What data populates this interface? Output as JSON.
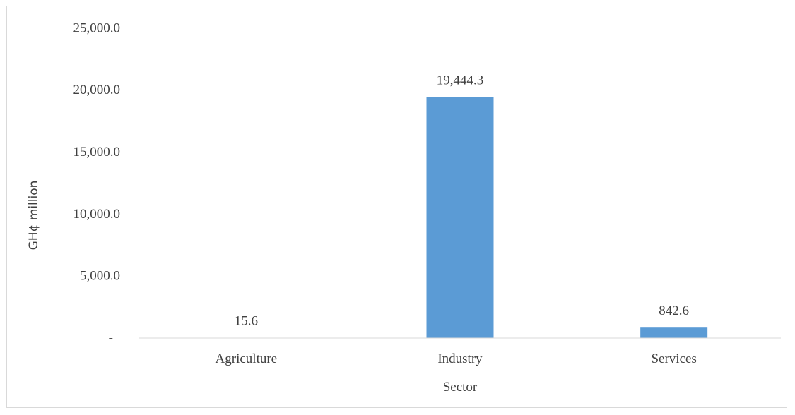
{
  "chart_data": {
    "type": "bar",
    "categories": [
      "Agriculture",
      "Industry",
      "Services"
    ],
    "values": [
      15.6,
      19444.3,
      842.6
    ],
    "data_labels": [
      "15.6",
      "19,444.3",
      "842.6"
    ],
    "title": "",
    "xlabel": "Sector",
    "ylabel": "GH¢ million",
    "ylim": [
      0,
      25000
    ],
    "yticks": [
      0,
      5000,
      10000,
      15000,
      20000,
      25000
    ],
    "ytick_labels": [
      "-",
      "5,000.0",
      "10,000.0",
      "15,000.0",
      "20,000.0",
      "25,000.0"
    ],
    "grid": false,
    "legend": "none",
    "bar_color": "#5b9bd5"
  }
}
